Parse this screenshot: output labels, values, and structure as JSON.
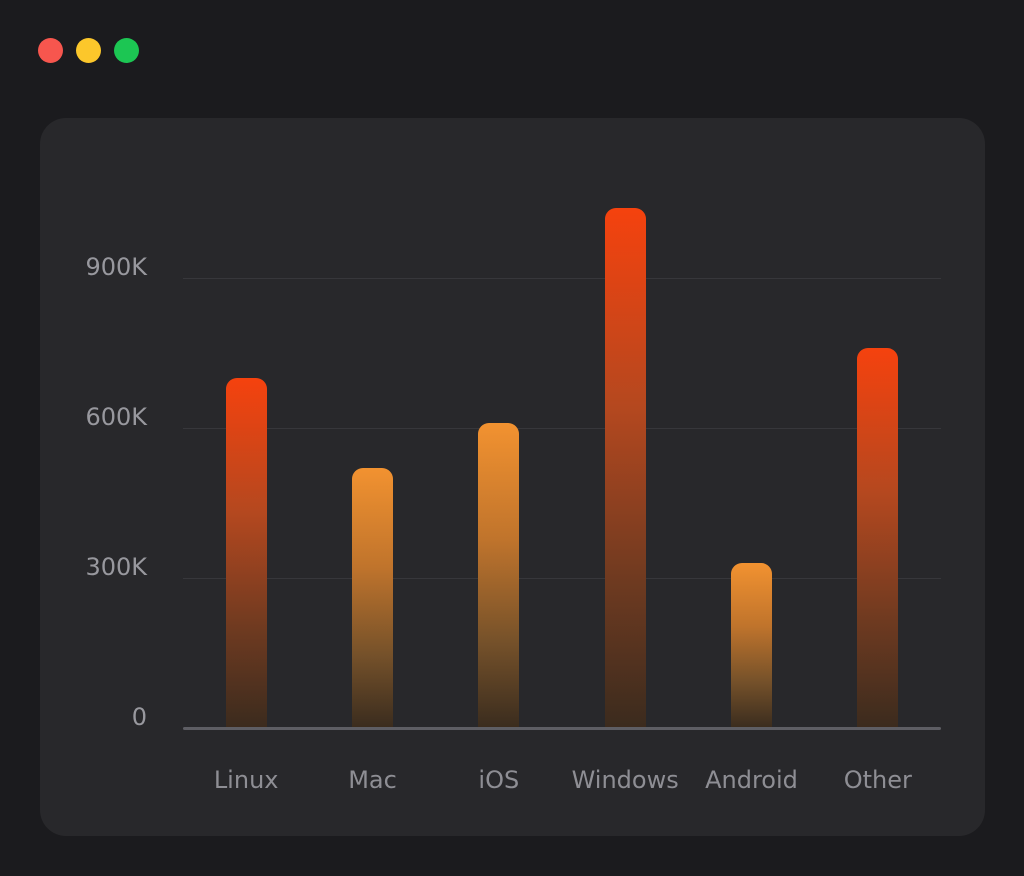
{
  "window_controls": {
    "close_color": "#f7564e",
    "minimize_color": "#fcc72b",
    "zoom_color": "#1cc653"
  },
  "theme": {
    "page_bg": "#1b1b1e",
    "card_bg": "#28282b",
    "grid_color": "#37373b",
    "axis_color": "#5e5e64",
    "tick_label_color": "#98989e",
    "category_label_color": "#8e8e94"
  },
  "chart_data": {
    "type": "bar",
    "categories": [
      "Linux",
      "Mac",
      "iOS",
      "Windows",
      "Android",
      "Other"
    ],
    "values": [
      700000,
      520000,
      610000,
      1040000,
      330000,
      760000
    ],
    "bar_colors": [
      "red",
      "orange",
      "orange",
      "red",
      "orange",
      "red"
    ],
    "bar_palette": {
      "red": {
        "top": "#f5420e",
        "mid": "#b5481f",
        "low": "#6e3a20",
        "bottom": "#3b2b1e"
      },
      "orange": {
        "top": "#f29230",
        "mid": "#c0742c",
        "low": "#75512a",
        "bottom": "#3a2c1e"
      }
    },
    "yticks": [
      {
        "label": "0",
        "value": 0
      },
      {
        "label": "300K",
        "value": 300000
      },
      {
        "label": "600K",
        "value": 600000
      },
      {
        "label": "900K",
        "value": 900000
      }
    ],
    "ylim": [
      0,
      1100000
    ],
    "grid": true,
    "legend": false,
    "xlabel": "",
    "ylabel": ""
  }
}
